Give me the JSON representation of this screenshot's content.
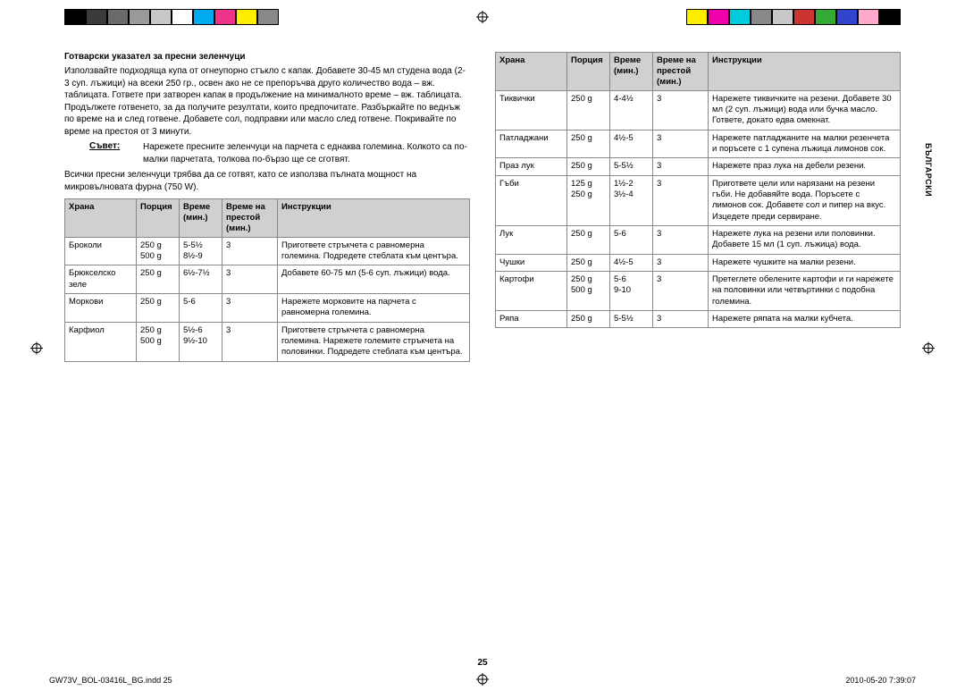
{
  "colorbars": {
    "left": [
      "#000000",
      "#3a3a3a",
      "#6a6a6a",
      "#9a9a9a",
      "#c8c8c8",
      "#ffffff",
      "#00aaee",
      "#ee3388",
      "#ffee00",
      "#888888"
    ],
    "right": [
      "#ffee00",
      "#ee00aa",
      "#00ccdd",
      "#888888",
      "#c8c8c8",
      "#cc3333",
      "#33aa33",
      "#3344cc",
      "#ffaacc",
      "#000000"
    ]
  },
  "sideLabel": "БЪЛГАРСКИ",
  "pageNumber": "25",
  "footer": {
    "file": "GW73V_BOL-03416L_BG.indd   25",
    "stamp": "2010-05-20   7:39:07"
  },
  "left": {
    "heading": "Готварски указател за пресни зеленчуци",
    "intro": "Използвайте подходяща купа от огнеупорно стъкло с капак. Добавете 30-45 мл студена вода (2-3 суп. лъжици) на всеки 250 гр., освен ако не се препоръчва друго количество вода – вж. таблицата. Гответе при затворен капак в продължение на минималното време – вж. таблицата. Продължете готвенето, за да получите резултати, които предпочитате. Разбъркайте по веднъж по време на и след готвене. Добавете сол, подправки или масло след готвене. Покривайте по време на престоя от 3 минути.",
    "tipLabel": "Съвет:",
    "tipText": "Нарежете пресните зеленчуци на парчета с еднаква големина. Колкото са по-малки парчетата, толкова по-бързо ще се сготвят.",
    "note": "Всички пресни зеленчуци трябва да се готвят, като се използва пълната мощност на микровълновата фурна (750 W).",
    "table": {
      "headers": {
        "food": "Храна",
        "portion": "Порция",
        "time": "Време (мин.)",
        "stand": "Време на престой (мин.)",
        "instr": "Инструкции"
      },
      "rows": [
        {
          "food": "Броколи",
          "portion": "250 g\n500 g",
          "time": "5-5½\n8½-9",
          "stand": "3",
          "instr": "Пригответе стръкчета с равномерна големина. Подредете стеблата към центъра."
        },
        {
          "food": "Брюкселско зеле",
          "portion": "250 g",
          "time": "6½-7½",
          "stand": "3",
          "instr": "Добавете 60-75 мл (5-6 суп. лъжици) вода."
        },
        {
          "food": "Моркови",
          "portion": "250 g",
          "time": "5-6",
          "stand": "3",
          "instr": "Нарежете морковите на парчета с равномерна големина."
        },
        {
          "food": "Карфиол",
          "portion": "250 g\n500 g",
          "time": "5½-6\n9½-10",
          "stand": "3",
          "instr": "Пригответе стръкчета с равномерна големина. Нарежете големите стръкчета на половинки. Подредете стеблата към центъра."
        }
      ]
    }
  },
  "right": {
    "table": {
      "headers": {
        "food": "Храна",
        "portion": "Порция",
        "time": "Време (мин.)",
        "stand": "Време на престой (мин.)",
        "instr": "Инструкции"
      },
      "rows": [
        {
          "food": "Тиквички",
          "portion": "250 g",
          "time": "4-4½",
          "stand": "3",
          "instr": "Нарежете тиквичките на резени. Добавете 30 мл (2 суп. лъжици) вода или бучка масло. Гответе, докато едва омекнат."
        },
        {
          "food": "Патладжани",
          "portion": "250 g",
          "time": "4½-5",
          "stand": "3",
          "instr": "Нарежете патладжаните на малки резенчета и поръсете с 1 супена лъжица лимонов сок."
        },
        {
          "food": "Праз лук",
          "portion": "250 g",
          "time": "5-5½",
          "stand": "3",
          "instr": "Нарежете праз лука на дебели резени."
        },
        {
          "food": "Гъби",
          "portion": "125 g\n250 g",
          "time": "1½-2\n3½-4",
          "stand": "3",
          "instr": "Пригответе цели или нарязани на резени гъби. Не добавяйте вода. Поръсете с лимонов сок. Добавете сол и пипер на вкус. Изцедете преди сервиране."
        },
        {
          "food": "Лук",
          "portion": "250 g",
          "time": "5-6",
          "stand": "3",
          "instr": "Нарежете лука на резени или половинки. Добавете 15 мл (1 суп. лъжица) вода."
        },
        {
          "food": "Чушки",
          "portion": "250 g",
          "time": "4½-5",
          "stand": "3",
          "instr": "Нарежете чушките на малки резени."
        },
        {
          "food": "Картофи",
          "portion": "250 g\n500 g",
          "time": "5-6\n9-10",
          "stand": "3",
          "instr": "Претеглете обелените картофи и ги нарежете на половинки или четвъртинки с подобна големина."
        },
        {
          "food": "Ряпа",
          "portion": "250 g",
          "time": "5-5½",
          "stand": "3",
          "instr": "Нарежете ряпата на малки кубчета."
        }
      ]
    }
  }
}
